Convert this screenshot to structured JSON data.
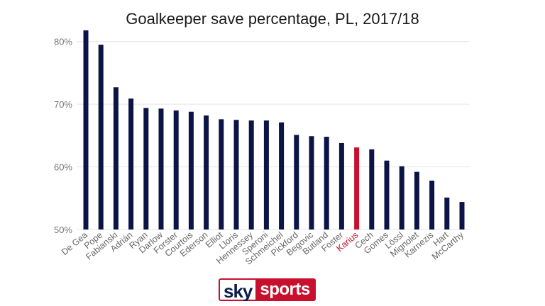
{
  "brand": {
    "sky": "sky",
    "sports": "sports"
  },
  "colors": {
    "bar": "#0b1445",
    "highlight": "#c8102e",
    "grid": "#e6e6e6",
    "tick": "#777777",
    "label": "#666666"
  },
  "chart_data": {
    "type": "bar",
    "title": "Goalkeeper save percentage, PL, 2017/18",
    "xlabel": "",
    "ylabel": "",
    "ylim": [
      50,
      82
    ],
    "yticks": [
      50,
      60,
      70,
      80
    ],
    "ytick_labels": [
      "50%",
      "60%",
      "70%",
      "80%"
    ],
    "grid": true,
    "highlight": "Karius",
    "categories": [
      "De Gea",
      "Pope",
      "Fabianski",
      "Adrián",
      "Ryan",
      "Darlow",
      "Forster",
      "Courtois",
      "Ederson",
      "Elliot",
      "Lloris",
      "Hennessey",
      "Speroni",
      "Schmeichel",
      "Pickford",
      "Begovic",
      "Butland",
      "Foster",
      "Karius",
      "Cech",
      "Gomes",
      "Lössl",
      "Mignolet",
      "Karnezis",
      "Hart",
      "McCarthy"
    ],
    "values": [
      81.8,
      79.5,
      72.7,
      70.9,
      69.4,
      69.3,
      69.0,
      68.8,
      68.2,
      67.6,
      67.5,
      67.4,
      67.4,
      67.1,
      65.1,
      64.9,
      64.8,
      63.8,
      63.1,
      62.8,
      61.0,
      60.1,
      59.2,
      57.8,
      55.1,
      54.4
    ]
  }
}
